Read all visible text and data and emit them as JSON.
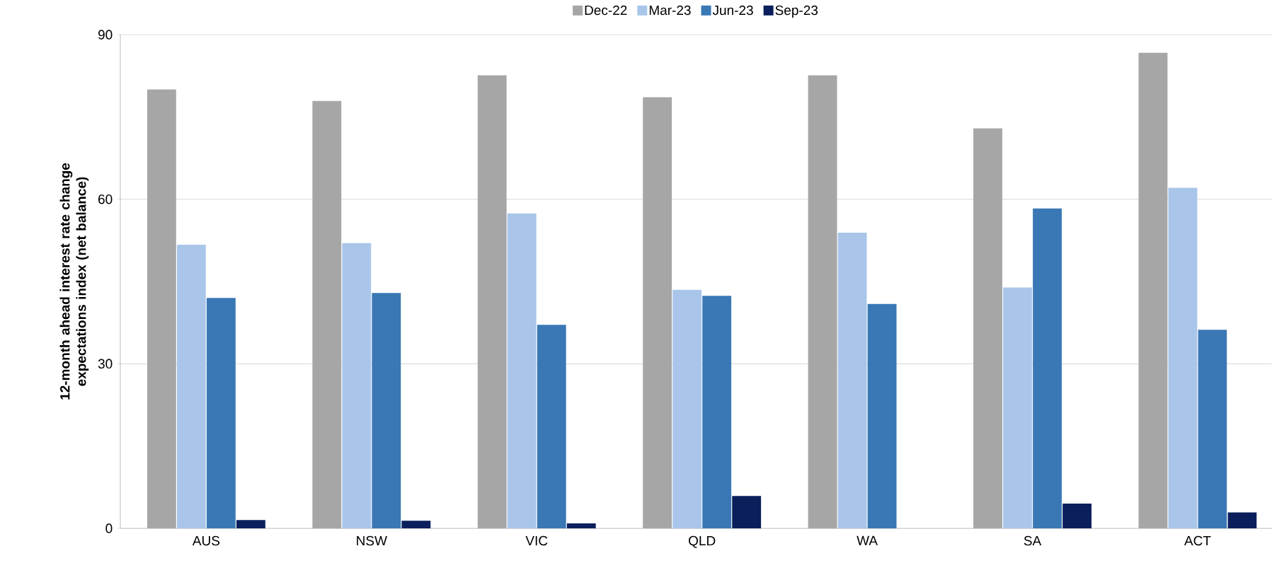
{
  "chart_data": {
    "type": "bar",
    "ylabel": "12-month ahead interest rate change expectations index (net balance)",
    "categories": [
      "AUS",
      "NSW",
      "VIC",
      "QLD",
      "WA",
      "SA",
      "ACT"
    ],
    "series": [
      {
        "name": "Dec-22",
        "color": "#a6a6a6",
        "values": [
          80.0,
          77.9,
          82.6,
          78.6,
          82.6,
          72.9,
          86.7
        ]
      },
      {
        "name": "Mar-23",
        "color": "#a9c6ea",
        "values": [
          51.7,
          52.0,
          57.4,
          43.5,
          53.9,
          43.9,
          62.1
        ]
      },
      {
        "name": "Jun-23",
        "color": "#3a78b5",
        "values": [
          42.0,
          42.9,
          37.1,
          42.4,
          40.9,
          58.3,
          36.2
        ]
      },
      {
        "name": "Sep-23",
        "color": "#0a1f5c",
        "values": [
          1.5,
          1.4,
          0.9,
          5.9,
          0.0,
          4.5,
          2.9
        ]
      }
    ],
    "ylim": [
      0,
      90
    ],
    "yticks": [
      0,
      30,
      60,
      90
    ],
    "grid": "y",
    "legend": "top"
  }
}
